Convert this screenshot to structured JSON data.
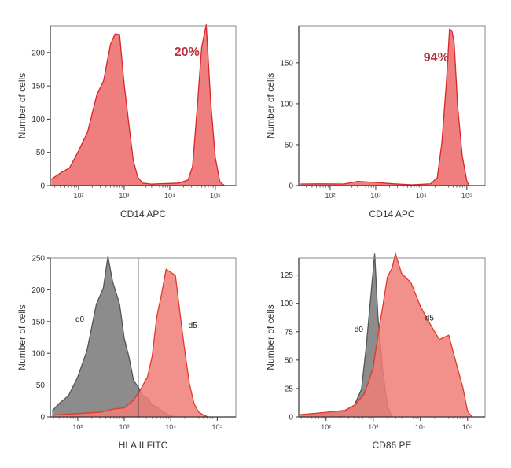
{
  "chart_data": [
    {
      "type": "area",
      "xlabel": "CD14 APC",
      "ylabel": "Number of cells",
      "x_scale": "log",
      "xlim": [
        1.38,
        5.45
      ],
      "ylim": [
        0,
        240
      ],
      "yticks": [
        0,
        50,
        100,
        150,
        200
      ],
      "xticks": [
        {
          "value": 2,
          "label": "10²"
        },
        {
          "value": 3,
          "label": "10³"
        },
        {
          "value": 4,
          "label": "10⁴"
        },
        {
          "value": 5,
          "label": "10⁵"
        }
      ],
      "annotations": [
        {
          "text": "20%",
          "x": 4.1,
          "y": 195,
          "color": "#b8343e"
        }
      ],
      "gate_line": null,
      "series": [
        {
          "color": "#d8262b",
          "fill": "#ef7e7e",
          "x": [
            1.4,
            1.6,
            1.8,
            2.0,
            2.2,
            2.4,
            2.55,
            2.7,
            2.8,
            2.9,
            3.0,
            3.1,
            3.2,
            3.3,
            3.4,
            3.6,
            3.8,
            4.0,
            4.2,
            4.4,
            4.5,
            4.6,
            4.7,
            4.8,
            4.9,
            5.0,
            5.1,
            5.2
          ],
          "y": [
            10,
            18,
            28,
            50,
            85,
            130,
            165,
            205,
            235,
            220,
            160,
            90,
            40,
            12,
            4,
            2,
            3,
            3,
            4,
            8,
            30,
            110,
            215,
            235,
            130,
            40,
            6,
            0
          ]
        }
      ]
    },
    {
      "type": "area",
      "xlabel": "CD14 APC",
      "ylabel": "Number of cells",
      "x_scale": "log",
      "xlim": [
        1.31,
        5.4
      ],
      "ylim": [
        0,
        195
      ],
      "yticks": [
        0,
        50,
        100,
        150
      ],
      "xticks": [
        {
          "value": 2,
          "label": "10²"
        },
        {
          "value": 3,
          "label": "10³"
        },
        {
          "value": 4,
          "label": "10⁴"
        },
        {
          "value": 5,
          "label": "10⁵"
        }
      ],
      "annotations": [
        {
          "text": "94%",
          "x": 4.05,
          "y": 152,
          "color": "#b8343e"
        }
      ],
      "gate_line": null,
      "series": [
        {
          "color": "#d8262b",
          "fill": "#ef7e7e",
          "x": [
            1.35,
            1.8,
            2.3,
            2.6,
            3.0,
            3.4,
            3.8,
            4.2,
            4.35,
            4.45,
            4.55,
            4.62,
            4.67,
            4.72,
            4.8,
            4.9,
            5.0,
            5.05
          ],
          "y": [
            2,
            2,
            2,
            5,
            4,
            2,
            1,
            2,
            10,
            50,
            130,
            185,
            195,
            170,
            100,
            35,
            6,
            0
          ]
        }
      ]
    },
    {
      "type": "area",
      "xlabel": "HLA II FITC",
      "ylabel": "Number of cells",
      "x_scale": "log",
      "xlim": [
        1.41,
        5.4
      ],
      "ylim": [
        0,
        250
      ],
      "yticks": [
        0,
        50,
        100,
        150,
        200,
        250
      ],
      "xticks": [
        {
          "value": 2,
          "label": "10²"
        },
        {
          "value": 3,
          "label": "10³"
        },
        {
          "value": 4,
          "label": "10⁴"
        },
        {
          "value": 5,
          "label": "10⁵"
        }
      ],
      "annotations": [
        {
          "text": "d0",
          "x": 1.95,
          "y": 150,
          "color": "#222222"
        },
        {
          "text": "d5",
          "x": 4.38,
          "y": 140,
          "color": "#222222"
        }
      ],
      "gate_line": 3.3,
      "series": [
        {
          "name": "d0",
          "color": "#555555",
          "fill": "#8c8c8c",
          "x": [
            1.45,
            1.6,
            1.8,
            2.0,
            2.2,
            2.4,
            2.55,
            2.65,
            2.75,
            2.9,
            3.0,
            3.1,
            3.2,
            3.3,
            3.4,
            3.5,
            3.6,
            3.7,
            3.8,
            3.9,
            4.0,
            4.1
          ],
          "y": [
            10,
            20,
            35,
            60,
            110,
            170,
            210,
            245,
            220,
            170,
            130,
            90,
            60,
            45,
            35,
            28,
            20,
            15,
            10,
            5,
            2,
            0
          ]
        },
        {
          "name": "d5",
          "color": "#e03a2a",
          "fill": "#f07c78",
          "x": [
            1.45,
            2.0,
            2.5,
            2.8,
            3.0,
            3.2,
            3.35,
            3.5,
            3.6,
            3.7,
            3.8,
            3.9,
            4.0,
            4.1,
            4.2,
            4.3,
            4.4,
            4.5,
            4.6,
            4.7,
            4.8
          ],
          "y": [
            3,
            5,
            8,
            12,
            15,
            25,
            45,
            60,
            100,
            150,
            200,
            225,
            235,
            215,
            170,
            100,
            55,
            20,
            8,
            3,
            0
          ]
        }
      ]
    },
    {
      "type": "area",
      "xlabel": "CD86 PE",
      "ylabel": "Number of cells",
      "x_scale": "log",
      "xlim": [
        1.42,
        5.37
      ],
      "ylim": [
        0,
        140
      ],
      "yticks": [
        0,
        25,
        50,
        75,
        100,
        125
      ],
      "xticks": [
        {
          "value": 2,
          "label": "10²"
        },
        {
          "value": 3,
          "label": "10³"
        },
        {
          "value": 4,
          "label": "10⁴"
        },
        {
          "value": 5,
          "label": "10⁵"
        }
      ],
      "annotations": [
        {
          "text": "d0",
          "x": 2.6,
          "y": 75,
          "color": "#222222"
        },
        {
          "text": "d5",
          "x": 4.1,
          "y": 85,
          "color": "#222222"
        }
      ],
      "gate_line": null,
      "series": [
        {
          "name": "d0",
          "color": "#555555",
          "fill": "#8c8c8c",
          "x": [
            1.45,
            2.0,
            2.4,
            2.6,
            2.75,
            2.85,
            2.95,
            3.03,
            3.1,
            3.2,
            3.3,
            3.4
          ],
          "y": [
            2,
            3,
            5,
            10,
            25,
            60,
            110,
            140,
            90,
            40,
            10,
            0
          ]
        },
        {
          "name": "d5",
          "color": "#e03a2a",
          "fill": "#f07c78",
          "x": [
            1.45,
            2.0,
            2.4,
            2.6,
            2.8,
            2.9,
            3.0,
            3.1,
            3.2,
            3.3,
            3.4,
            3.47,
            3.6,
            3.8,
            4.0,
            4.2,
            4.4,
            4.6,
            4.75,
            4.9,
            5.0,
            5.1
          ],
          "y": [
            2,
            4,
            6,
            10,
            20,
            30,
            45,
            70,
            100,
            120,
            135,
            140,
            130,
            115,
            100,
            80,
            70,
            70,
            50,
            25,
            5,
            0
          ]
        }
      ]
    }
  ]
}
